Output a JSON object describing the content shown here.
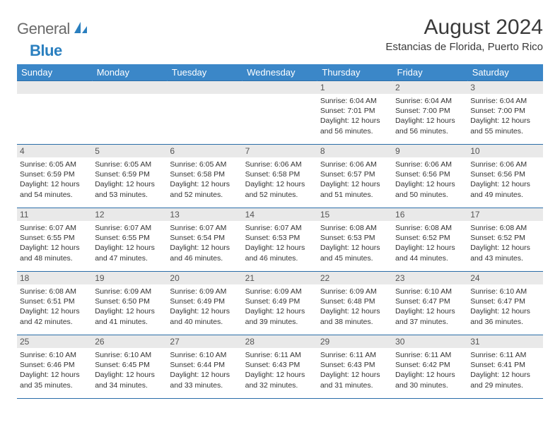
{
  "logo": {
    "text1": "General",
    "text2": "Blue"
  },
  "title": "August 2024",
  "location": "Estancias de Florida, Puerto Rico",
  "colors": {
    "header_bg": "#3b87c8",
    "header_text": "#ffffff",
    "row_border": "#2a6da8",
    "daynum_bg": "#e9e9e9",
    "logo_gray": "#6a6a6a",
    "logo_blue": "#2a7fbf"
  },
  "weekdays": [
    "Sunday",
    "Monday",
    "Tuesday",
    "Wednesday",
    "Thursday",
    "Friday",
    "Saturday"
  ],
  "weeks": [
    [
      null,
      null,
      null,
      null,
      {
        "n": "1",
        "sr": "6:04 AM",
        "ss": "7:01 PM",
        "dl": "12 hours and 56 minutes."
      },
      {
        "n": "2",
        "sr": "6:04 AM",
        "ss": "7:00 PM",
        "dl": "12 hours and 56 minutes."
      },
      {
        "n": "3",
        "sr": "6:04 AM",
        "ss": "7:00 PM",
        "dl": "12 hours and 55 minutes."
      }
    ],
    [
      {
        "n": "4",
        "sr": "6:05 AM",
        "ss": "6:59 PM",
        "dl": "12 hours and 54 minutes."
      },
      {
        "n": "5",
        "sr": "6:05 AM",
        "ss": "6:59 PM",
        "dl": "12 hours and 53 minutes."
      },
      {
        "n": "6",
        "sr": "6:05 AM",
        "ss": "6:58 PM",
        "dl": "12 hours and 52 minutes."
      },
      {
        "n": "7",
        "sr": "6:06 AM",
        "ss": "6:58 PM",
        "dl": "12 hours and 52 minutes."
      },
      {
        "n": "8",
        "sr": "6:06 AM",
        "ss": "6:57 PM",
        "dl": "12 hours and 51 minutes."
      },
      {
        "n": "9",
        "sr": "6:06 AM",
        "ss": "6:56 PM",
        "dl": "12 hours and 50 minutes."
      },
      {
        "n": "10",
        "sr": "6:06 AM",
        "ss": "6:56 PM",
        "dl": "12 hours and 49 minutes."
      }
    ],
    [
      {
        "n": "11",
        "sr": "6:07 AM",
        "ss": "6:55 PM",
        "dl": "12 hours and 48 minutes."
      },
      {
        "n": "12",
        "sr": "6:07 AM",
        "ss": "6:55 PM",
        "dl": "12 hours and 47 minutes."
      },
      {
        "n": "13",
        "sr": "6:07 AM",
        "ss": "6:54 PM",
        "dl": "12 hours and 46 minutes."
      },
      {
        "n": "14",
        "sr": "6:07 AM",
        "ss": "6:53 PM",
        "dl": "12 hours and 46 minutes."
      },
      {
        "n": "15",
        "sr": "6:08 AM",
        "ss": "6:53 PM",
        "dl": "12 hours and 45 minutes."
      },
      {
        "n": "16",
        "sr": "6:08 AM",
        "ss": "6:52 PM",
        "dl": "12 hours and 44 minutes."
      },
      {
        "n": "17",
        "sr": "6:08 AM",
        "ss": "6:52 PM",
        "dl": "12 hours and 43 minutes."
      }
    ],
    [
      {
        "n": "18",
        "sr": "6:08 AM",
        "ss": "6:51 PM",
        "dl": "12 hours and 42 minutes."
      },
      {
        "n": "19",
        "sr": "6:09 AM",
        "ss": "6:50 PM",
        "dl": "12 hours and 41 minutes."
      },
      {
        "n": "20",
        "sr": "6:09 AM",
        "ss": "6:49 PM",
        "dl": "12 hours and 40 minutes."
      },
      {
        "n": "21",
        "sr": "6:09 AM",
        "ss": "6:49 PM",
        "dl": "12 hours and 39 minutes."
      },
      {
        "n": "22",
        "sr": "6:09 AM",
        "ss": "6:48 PM",
        "dl": "12 hours and 38 minutes."
      },
      {
        "n": "23",
        "sr": "6:10 AM",
        "ss": "6:47 PM",
        "dl": "12 hours and 37 minutes."
      },
      {
        "n": "24",
        "sr": "6:10 AM",
        "ss": "6:47 PM",
        "dl": "12 hours and 36 minutes."
      }
    ],
    [
      {
        "n": "25",
        "sr": "6:10 AM",
        "ss": "6:46 PM",
        "dl": "12 hours and 35 minutes."
      },
      {
        "n": "26",
        "sr": "6:10 AM",
        "ss": "6:45 PM",
        "dl": "12 hours and 34 minutes."
      },
      {
        "n": "27",
        "sr": "6:10 AM",
        "ss": "6:44 PM",
        "dl": "12 hours and 33 minutes."
      },
      {
        "n": "28",
        "sr": "6:11 AM",
        "ss": "6:43 PM",
        "dl": "12 hours and 32 minutes."
      },
      {
        "n": "29",
        "sr": "6:11 AM",
        "ss": "6:43 PM",
        "dl": "12 hours and 31 minutes."
      },
      {
        "n": "30",
        "sr": "6:11 AM",
        "ss": "6:42 PM",
        "dl": "12 hours and 30 minutes."
      },
      {
        "n": "31",
        "sr": "6:11 AM",
        "ss": "6:41 PM",
        "dl": "12 hours and 29 minutes."
      }
    ]
  ],
  "labels": {
    "sunrise": "Sunrise:",
    "sunset": "Sunset:",
    "daylight": "Daylight:"
  }
}
